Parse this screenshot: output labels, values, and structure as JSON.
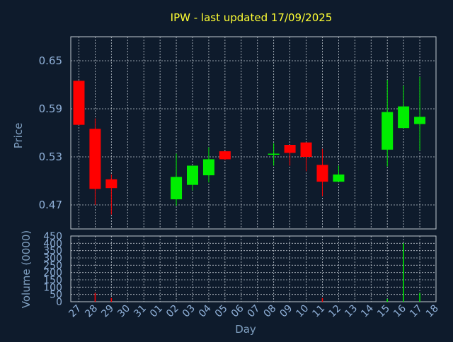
{
  "colors": {
    "background": "#0e1b2c",
    "up": "#00ee00",
    "down": "#ff0000",
    "title": "#ffff33",
    "label": "#7f9fc0",
    "grid": "#c0c8d0"
  },
  "chart_data": {
    "type": "candlestick",
    "title": "IPW - last updated 17/09/2025",
    "xlabel": "Day",
    "ylabel": "Price",
    "volume_label": "Volume (0000)",
    "grid": true,
    "x_ticks": [
      "27",
      "28",
      "29",
      "30",
      "31",
      "01",
      "02",
      "03",
      "04",
      "05",
      "06",
      "07",
      "08",
      "09",
      "10",
      "11",
      "12",
      "13",
      "14",
      "15",
      "16",
      "17",
      "18"
    ],
    "y_ticks": [
      0.47,
      0.53,
      0.59,
      0.65
    ],
    "ylim": [
      0.44,
      0.68
    ],
    "volume_ticks": [
      0,
      50,
      100,
      150,
      200,
      250,
      300,
      350,
      400,
      450
    ],
    "volume_ylim": [
      0,
      450
    ],
    "candles": [
      {
        "x": "27",
        "open": 0.625,
        "high": 0.625,
        "low": 0.57,
        "close": 0.57,
        "volume": 0
      },
      {
        "x": "28",
        "open": 0.565,
        "high": 0.578,
        "low": 0.47,
        "close": 0.49,
        "volume": 60
      },
      {
        "x": "29",
        "open": 0.502,
        "high": 0.508,
        "low": 0.458,
        "close": 0.491,
        "volume": 25
      },
      {
        "x": "02",
        "open": 0.477,
        "high": 0.534,
        "low": 0.469,
        "close": 0.505,
        "volume": 0
      },
      {
        "x": "03",
        "open": 0.495,
        "high": 0.519,
        "low": 0.488,
        "close": 0.519,
        "volume": 0
      },
      {
        "x": "04",
        "open": 0.507,
        "high": 0.542,
        "low": 0.498,
        "close": 0.527,
        "volume": 0
      },
      {
        "x": "05",
        "open": 0.537,
        "high": 0.537,
        "low": 0.526,
        "close": 0.527,
        "volume": 0
      },
      {
        "x": "08",
        "open": 0.533,
        "high": 0.547,
        "low": 0.519,
        "close": 0.534,
        "volume": 0
      },
      {
        "x": "09",
        "open": 0.545,
        "high": 0.545,
        "low": 0.519,
        "close": 0.535,
        "volume": 0
      },
      {
        "x": "10",
        "open": 0.548,
        "high": 0.548,
        "low": 0.512,
        "close": 0.53,
        "volume": 0
      },
      {
        "x": "11",
        "open": 0.52,
        "high": 0.54,
        "low": 0.481,
        "close": 0.499,
        "volume": 25
      },
      {
        "x": "12",
        "open": 0.499,
        "high": 0.519,
        "low": 0.499,
        "close": 0.508,
        "volume": 0
      },
      {
        "x": "15",
        "open": 0.539,
        "high": 0.626,
        "low": 0.518,
        "close": 0.586,
        "volume": 20
      },
      {
        "x": "16",
        "open": 0.566,
        "high": 0.619,
        "low": 0.566,
        "close": 0.593,
        "volume": 400
      },
      {
        "x": "17",
        "open": 0.571,
        "high": 0.63,
        "low": 0.538,
        "close": 0.58,
        "volume": 60
      }
    ]
  }
}
